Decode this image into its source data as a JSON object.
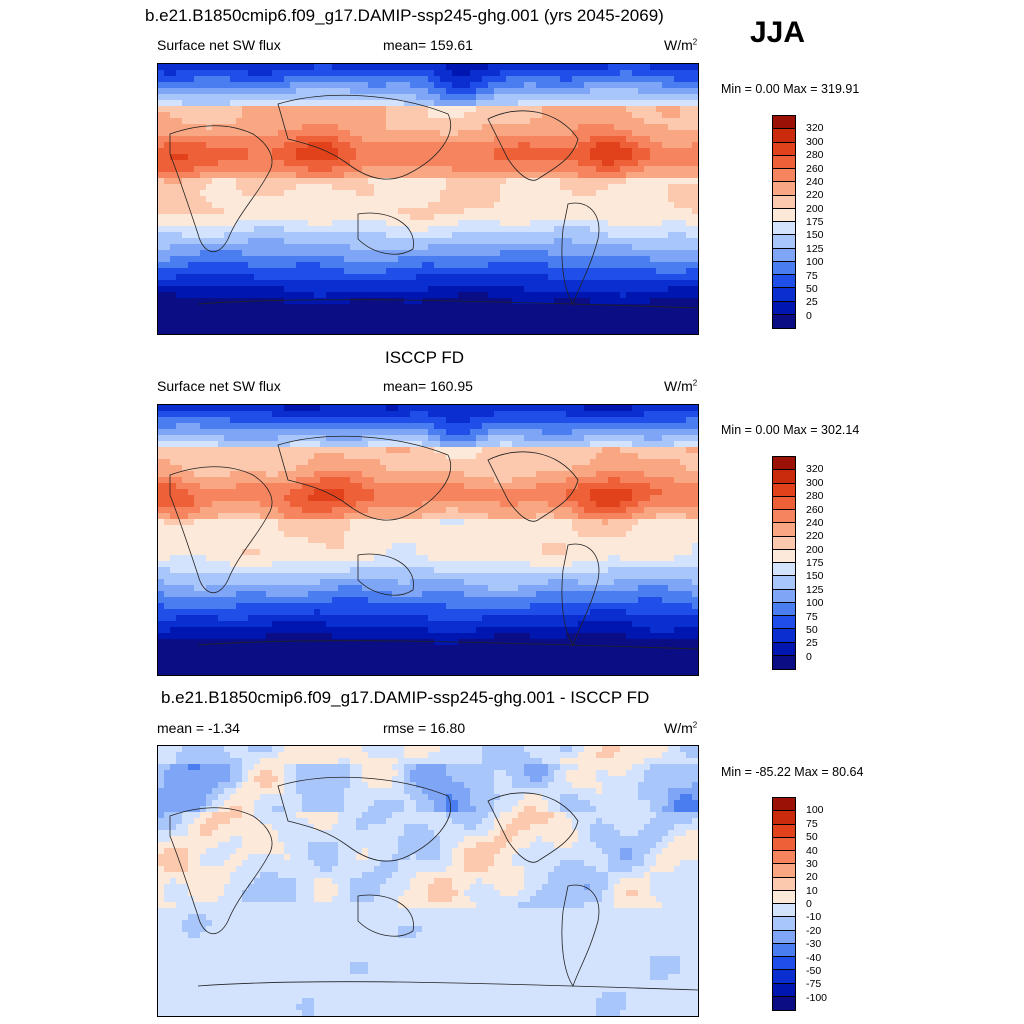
{
  "season": "JJA",
  "palette_abs": [
    "#0b0d84",
    "#0016b0",
    "#0a2ed0",
    "#1f4ee8",
    "#4a7df0",
    "#7ea5f6",
    "#a9c6fa",
    "#d3e3fd",
    "#fde9da",
    "#fcc9ae",
    "#f9a683",
    "#f6855f",
    "#ee6138",
    "#e1421b",
    "#cb2b0d",
    "#9b1106"
  ],
  "palette_diff": [
    "#0b0d84",
    "#0016b0",
    "#0a2ed0",
    "#1f4ee8",
    "#4a7df0",
    "#7ea5f6",
    "#a9c6fa",
    "#d3e3fd",
    "#fde9da",
    "#fcc9ae",
    "#f9a683",
    "#f6855f",
    "#ee6138",
    "#e1421b",
    "#cb2b0d",
    "#9b1106"
  ],
  "panels": [
    {
      "title": "b.e21.B1850cmip6.f09_g17.DAMIP-ssp245-ghg.001 (yrs 2045-2069)",
      "left_label": "Surface net SW flux",
      "center_label": "mean= 159.61",
      "units": "W/m",
      "units_sup": "2",
      "minmax": "Min =   0.00 Max = 319.91",
      "colorbar_ticks": [
        "320",
        "300",
        "280",
        "260",
        "240",
        "220",
        "200",
        "175",
        "150",
        "125",
        "100",
        "75",
        "50",
        "25",
        "0"
      ]
    },
    {
      "title": "ISCCP FD",
      "left_label": "Surface net SW flux",
      "center_label": "mean= 160.95",
      "units": "W/m",
      "units_sup": "2",
      "minmax": "Min =   0.00 Max = 302.14",
      "colorbar_ticks": [
        "320",
        "300",
        "280",
        "260",
        "240",
        "220",
        "200",
        "175",
        "150",
        "125",
        "100",
        "75",
        "50",
        "25",
        "0"
      ]
    },
    {
      "title": "b.e21.B1850cmip6.f09_g17.DAMIP-ssp245-ghg.001 - ISCCP FD",
      "left_label": "mean =  -1.34",
      "center_label": "rmse =  16.80",
      "units": "W/m",
      "units_sup": "2",
      "minmax": "Min = -85.22 Max =  80.64",
      "colorbar_ticks": [
        "100",
        "75",
        "50",
        "40",
        "30",
        "20",
        "10",
        "0",
        "-10",
        "-20",
        "-30",
        "-40",
        "-50",
        "-75",
        "-100"
      ]
    }
  ],
  "chart_data": [
    {
      "type": "heatmap",
      "title": "b.e21.B1850cmip6.f09_g17.DAMIP-ssp245-ghg.001 (yrs 2045-2069)",
      "variable": "Surface net SW flux",
      "units": "W/m2",
      "season": "JJA",
      "mean": 159.61,
      "min": 0.0,
      "max": 319.91,
      "levels": [
        0,
        25,
        50,
        75,
        100,
        125,
        150,
        175,
        200,
        220,
        240,
        260,
        280,
        300,
        320
      ]
    },
    {
      "type": "heatmap",
      "title": "ISCCP FD",
      "variable": "Surface net SW flux",
      "units": "W/m2",
      "season": "JJA",
      "mean": 160.95,
      "min": 0.0,
      "max": 302.14,
      "levels": [
        0,
        25,
        50,
        75,
        100,
        125,
        150,
        175,
        200,
        220,
        240,
        260,
        280,
        300,
        320
      ]
    },
    {
      "type": "heatmap",
      "title": "b.e21.B1850cmip6.f09_g17.DAMIP-ssp245-ghg.001 - ISCCP FD",
      "units": "W/m2",
      "mean": -1.34,
      "rmse": 16.8,
      "min": -85.22,
      "max": 80.64,
      "levels": [
        -100,
        -75,
        -50,
        -40,
        -30,
        -20,
        -10,
        0,
        10,
        20,
        30,
        40,
        50,
        75,
        100
      ]
    }
  ]
}
